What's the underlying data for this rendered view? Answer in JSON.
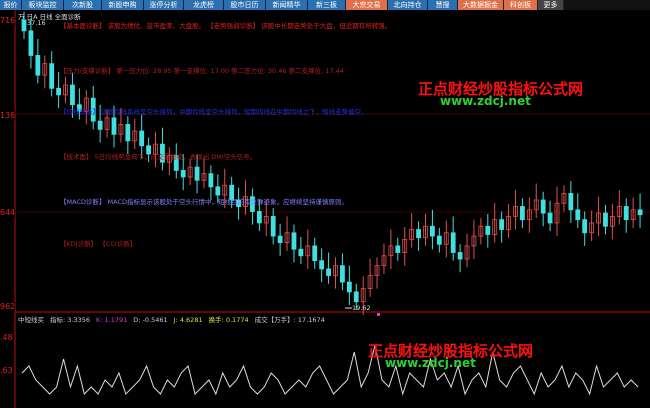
{
  "menu": [
    {
      "label": "报价",
      "style": "b"
    },
    {
      "label": "板块监控",
      "style": "b"
    },
    {
      "label": "次新股",
      "style": "b"
    },
    {
      "label": "新股申购",
      "style": "b"
    },
    {
      "label": "涨停分析",
      "style": "b"
    },
    {
      "label": "龙虎榜",
      "style": "b"
    },
    {
      "label": "股市日历",
      "style": "b"
    },
    {
      "label": "新闻精华",
      "style": "b"
    },
    {
      "label": "新三板",
      "style": "b"
    },
    {
      "label": "大宗交易",
      "style": "o"
    },
    {
      "label": "北向持仓",
      "style": "b"
    },
    {
      "label": "慧搜",
      "style": "b"
    },
    {
      "label": "大数据掘金",
      "style": "o"
    },
    {
      "label": "科创板",
      "style": "o"
    },
    {
      "label": "更多",
      "style": "g"
    }
  ],
  "header": {
    "title": "万 日A 日线 全面诊断",
    "high_label": "37.16",
    "low_label": "19.62"
  },
  "axis": {
    "main": [
      "716",
      "138",
      "644",
      "962"
    ],
    "sub": [
      ".48",
      ".63"
    ]
  },
  "diagnosis": [
    {
      "text": "【基本面诊断】 该股为绩优、蓝市盈率、大盘股。 【走势强弱诊断】 该股中长期走势处于大盘，但近期有所转强。",
      "color": "#e02020"
    },
    {
      "text": "【压力/支撑诊断】 第一压力位: 28.95 第一支撑位: 17.00 第二压力位: 30.46 第二支撑位: 17.44",
      "color": "#b02020"
    },
    {
      "text": "【均线诊断】 该股均线系统呈空头排列，中期均线呈空头排列，短期均线在中期均线之下，短线走势偏空。",
      "color": "#2030e0"
    },
    {
      "text": "【技术面】 5日均线明显向下，成交量萎缩，表现出 DMI空头信号。",
      "color": "#b02020"
    },
    {
      "text": "【MACD诊断】 MACD指标显示该股处于空头行情中，短线目前有反弹迹象，应继续坚持谨慎原则。",
      "color": "#8080ff"
    },
    {
      "text": "【KDJ诊断】   【CCI诊断】",
      "color": "#b02020"
    }
  ],
  "indicator": {
    "name": "中短线买",
    "items": [
      {
        "label": "指标: ",
        "value": "3.3356",
        "color": "#cccccc"
      },
      {
        "label": "K: ",
        "value": "1.1791",
        "color": "#d040d0"
      },
      {
        "label": "D: ",
        "value": "-0.5461",
        "color": "#cccccc"
      },
      {
        "label": "J: ",
        "value": "4.6281",
        "color": "#e0e040"
      },
      {
        "label": "换手: ",
        "value": "0.1774",
        "color": "#e0e040"
      },
      {
        "label": "成交【万手】: ",
        "value": "17.1674",
        "color": "#cccccc"
      }
    ]
  },
  "watermark": [
    {
      "name": "正点财经炒股指标公式网",
      "url": "www.zdcj.net"
    },
    {
      "name": "正点财经炒股指标公式网",
      "url": "www.zdcj.net"
    }
  ],
  "colors": {
    "up": "#e05050",
    "down": "#40e0e0",
    "axis": "#c01010",
    "indicator_line": "#dddddd"
  },
  "chart_data": {
    "type": "candlestick",
    "price_range": [
      19.62,
      37.16
    ],
    "close": [
      36.5,
      35.0,
      33.8,
      34.5,
      33.0,
      32.6,
      33.2,
      32.0,
      31.6,
      32.4,
      31.0,
      30.5,
      31.2,
      30.2,
      30.8,
      29.8,
      30.4,
      29.5,
      29.0,
      29.6,
      28.5,
      28.9,
      28.0,
      27.6,
      28.2,
      27.4,
      27.8,
      27.0,
      26.5,
      27.1,
      26.2,
      25.8,
      26.4,
      25.5,
      24.8,
      25.2,
      24.0,
      23.6,
      24.2,
      23.2,
      22.8,
      23.4,
      22.5,
      22.0,
      21.6,
      22.2,
      21.2,
      20.6,
      20.0,
      20.8,
      21.6,
      22.2,
      22.8,
      23.4,
      23.0,
      23.8,
      24.4,
      23.9,
      24.6,
      24.0,
      23.5,
      24.2,
      23.0,
      22.6,
      23.4,
      24.0,
      24.6,
      24.1,
      25.0,
      24.4,
      25.2,
      25.8,
      25.0,
      25.6,
      26.2,
      25.4,
      24.8,
      26.0,
      26.6,
      25.6,
      25.0,
      24.2,
      24.8,
      25.4,
      24.6,
      25.2,
      25.8,
      25.0,
      25.6,
      25.3
    ],
    "indicator": [
      5,
      6,
      4,
      3,
      2,
      3,
      7,
      3,
      6,
      2,
      3,
      2,
      4,
      3,
      5,
      2,
      3,
      4,
      6,
      3,
      2,
      4,
      3,
      5,
      6,
      2,
      3,
      4,
      2,
      5,
      3,
      4,
      6,
      3,
      2,
      3,
      5,
      4,
      2,
      3,
      4,
      3,
      5,
      6,
      4,
      2,
      3,
      4,
      8,
      3,
      5,
      9,
      4,
      3,
      6,
      2,
      5,
      4,
      3,
      7,
      4,
      5,
      3,
      6,
      2,
      4,
      5,
      3,
      8,
      4,
      3,
      5,
      6,
      4,
      2,
      5,
      3,
      4,
      6,
      3,
      5,
      4,
      2,
      6,
      3,
      4,
      5,
      3,
      4,
      3
    ]
  }
}
